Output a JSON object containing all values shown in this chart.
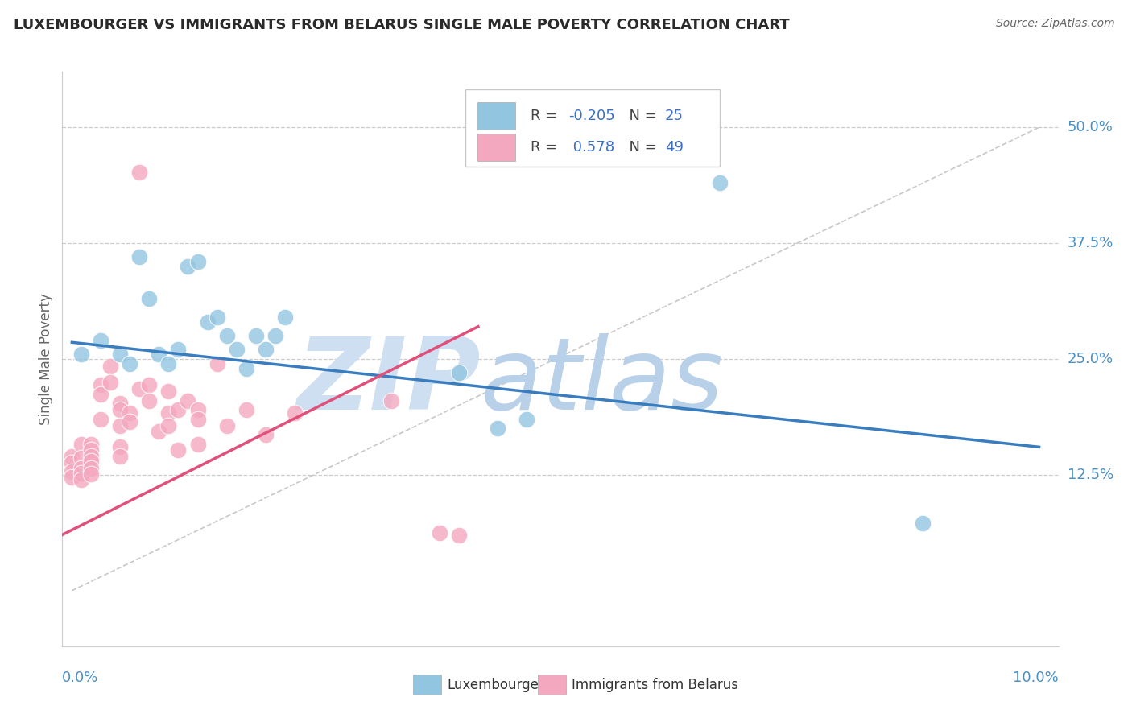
{
  "title": "LUXEMBOURGER VS IMMIGRANTS FROM BELARUS SINGLE MALE POVERTY CORRELATION CHART",
  "source": "Source: ZipAtlas.com",
  "ylabel": "Single Male Poverty",
  "y_tick_vals": [
    0.125,
    0.25,
    0.375,
    0.5
  ],
  "y_tick_labels": [
    "12.5%",
    "25.0%",
    "37.5%",
    "50.0%"
  ],
  "xlim": [
    -0.001,
    0.102
  ],
  "ylim": [
    -0.06,
    0.56
  ],
  "blue_color": "#92c5e0",
  "pink_color": "#f4a8c0",
  "blue_line_color": "#3a7dbf",
  "pink_line_color": "#e0507a",
  "diag_color": "#c8c8c8",
  "grid_color": "#cccccc",
  "label_color": "#4a90c4",
  "legend_R_blue": "-0.205",
  "legend_N_blue": "25",
  "legend_R_pink": "0.578",
  "legend_N_pink": "49",
  "blue_scatter": [
    [
      0.001,
      0.255
    ],
    [
      0.003,
      0.27
    ],
    [
      0.005,
      0.255
    ],
    [
      0.006,
      0.245
    ],
    [
      0.007,
      0.36
    ],
    [
      0.008,
      0.315
    ],
    [
      0.009,
      0.255
    ],
    [
      0.01,
      0.245
    ],
    [
      0.011,
      0.26
    ],
    [
      0.012,
      0.35
    ],
    [
      0.013,
      0.355
    ],
    [
      0.014,
      0.29
    ],
    [
      0.015,
      0.295
    ],
    [
      0.016,
      0.275
    ],
    [
      0.017,
      0.26
    ],
    [
      0.018,
      0.24
    ],
    [
      0.019,
      0.275
    ],
    [
      0.02,
      0.26
    ],
    [
      0.021,
      0.275
    ],
    [
      0.022,
      0.295
    ],
    [
      0.04,
      0.235
    ],
    [
      0.044,
      0.175
    ],
    [
      0.047,
      0.185
    ],
    [
      0.067,
      0.44
    ],
    [
      0.088,
      0.073
    ]
  ],
  "pink_scatter": [
    [
      0.0,
      0.145
    ],
    [
      0.0,
      0.138
    ],
    [
      0.0,
      0.128
    ],
    [
      0.0,
      0.122
    ],
    [
      0.001,
      0.158
    ],
    [
      0.001,
      0.143
    ],
    [
      0.001,
      0.132
    ],
    [
      0.001,
      0.127
    ],
    [
      0.001,
      0.12
    ],
    [
      0.002,
      0.158
    ],
    [
      0.002,
      0.152
    ],
    [
      0.002,
      0.145
    ],
    [
      0.002,
      0.14
    ],
    [
      0.002,
      0.132
    ],
    [
      0.002,
      0.126
    ],
    [
      0.003,
      0.222
    ],
    [
      0.003,
      0.212
    ],
    [
      0.003,
      0.185
    ],
    [
      0.004,
      0.242
    ],
    [
      0.004,
      0.225
    ],
    [
      0.005,
      0.202
    ],
    [
      0.005,
      0.195
    ],
    [
      0.005,
      0.178
    ],
    [
      0.005,
      0.155
    ],
    [
      0.005,
      0.145
    ],
    [
      0.006,
      0.192
    ],
    [
      0.006,
      0.182
    ],
    [
      0.007,
      0.452
    ],
    [
      0.007,
      0.218
    ],
    [
      0.008,
      0.222
    ],
    [
      0.008,
      0.205
    ],
    [
      0.009,
      0.172
    ],
    [
      0.01,
      0.215
    ],
    [
      0.01,
      0.192
    ],
    [
      0.01,
      0.178
    ],
    [
      0.011,
      0.195
    ],
    [
      0.011,
      0.152
    ],
    [
      0.012,
      0.205
    ],
    [
      0.013,
      0.195
    ],
    [
      0.013,
      0.185
    ],
    [
      0.013,
      0.158
    ],
    [
      0.015,
      0.245
    ],
    [
      0.016,
      0.178
    ],
    [
      0.018,
      0.195
    ],
    [
      0.02,
      0.168
    ],
    [
      0.023,
      0.192
    ],
    [
      0.033,
      0.205
    ],
    [
      0.038,
      0.062
    ],
    [
      0.04,
      0.06
    ]
  ],
  "blue_trend": [
    0.0,
    0.268,
    0.1,
    0.155
  ],
  "pink_trend": [
    -0.002,
    0.055,
    0.042,
    0.285
  ],
  "diag_pts": [
    0.0,
    0.0,
    0.1,
    0.5
  ]
}
